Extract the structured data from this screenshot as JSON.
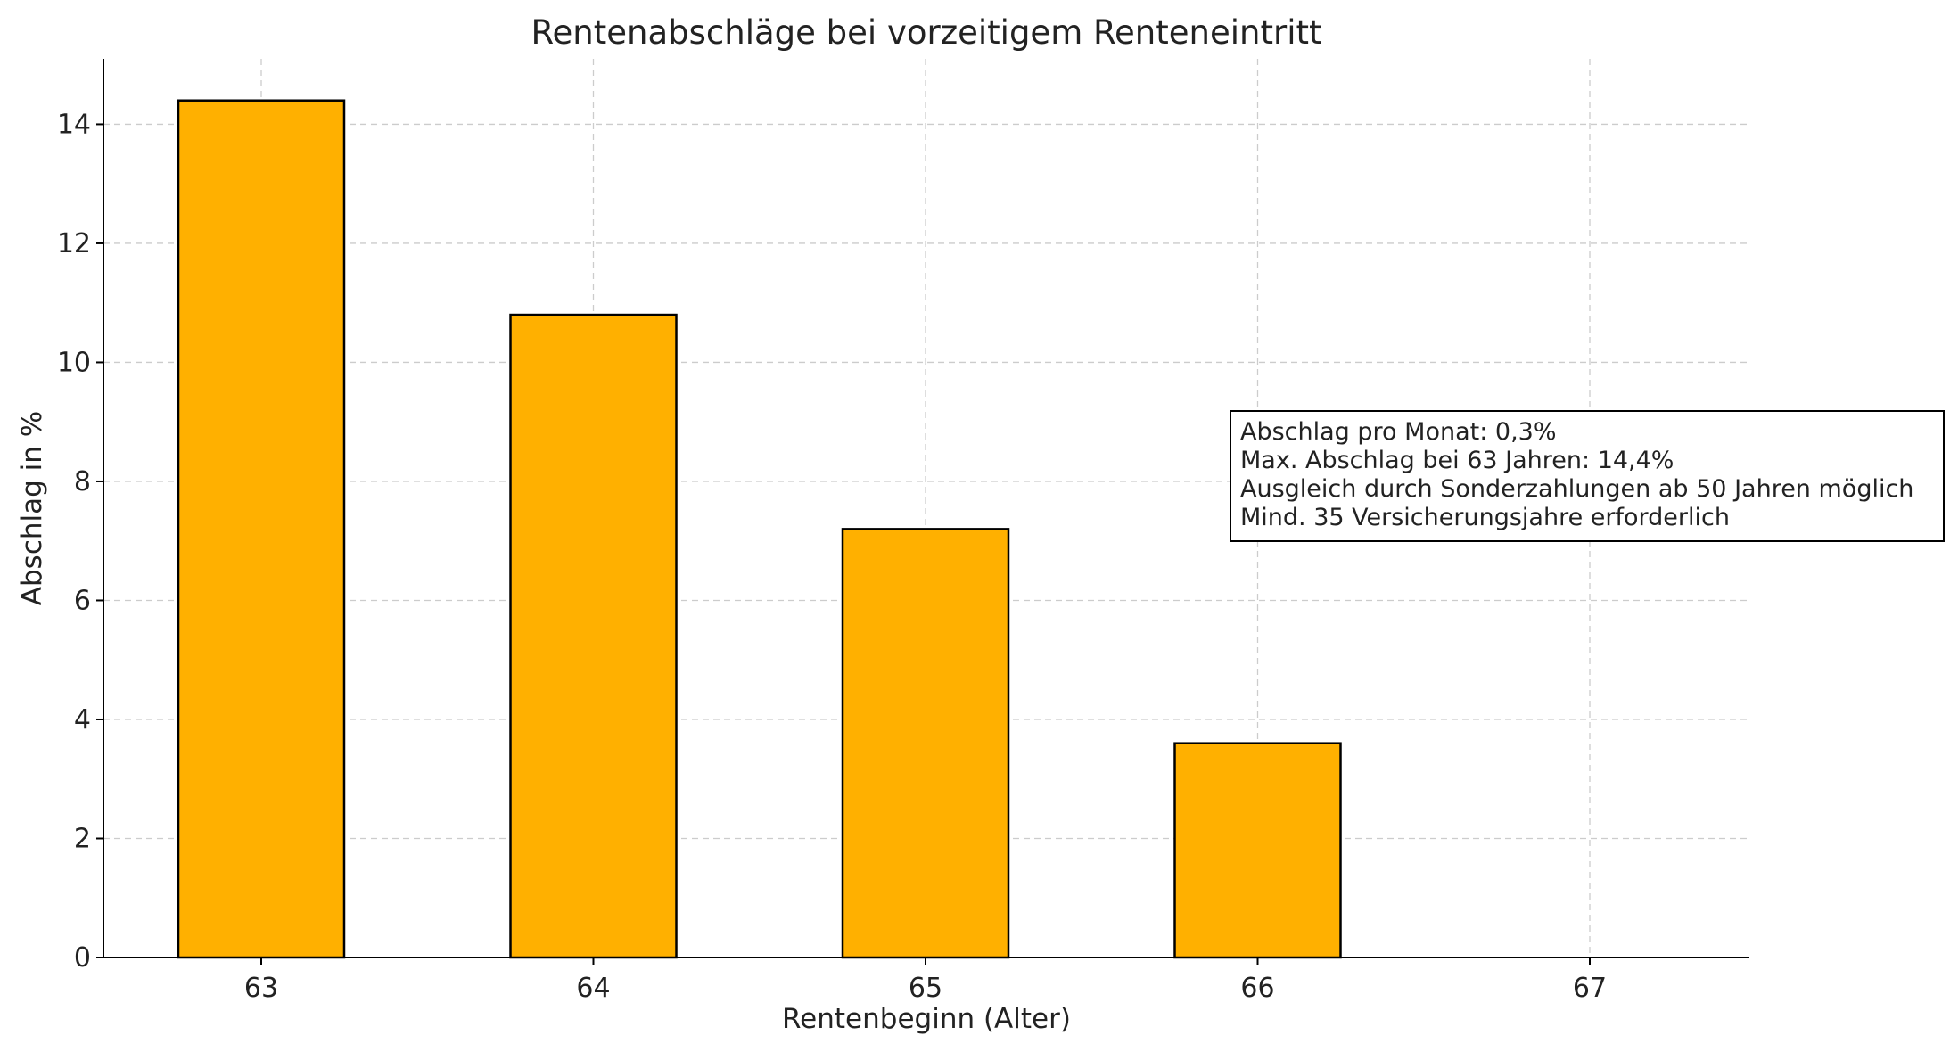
{
  "chart_data": {
    "type": "bar",
    "title": "Rentenabschläge bei vorzeitigem Renteneintritt",
    "xlabel": "Rentenbeginn (Alter)",
    "ylabel": "Abschlag in %",
    "categories": [
      "63",
      "64",
      "65",
      "66",
      "67"
    ],
    "values": [
      14.4,
      10.8,
      7.2,
      3.6,
      0
    ],
    "ylim": [
      0,
      15.1
    ],
    "yticks": [
      0,
      2,
      4,
      6,
      8,
      10,
      12,
      14
    ],
    "grid": true,
    "bar_color": "#FFB000",
    "bar_edge_color": "#000000",
    "annotation": {
      "lines": [
        "Abschlag pro Monat: 0,3%",
        "Max. Abschlag bei 63 Jahren: 14,4%",
        "Ausgleich durch Sonderzahlungen ab 50 Jahren möglich",
        "Mind. 35 Versicherungsjahre erforderlich"
      ]
    }
  }
}
